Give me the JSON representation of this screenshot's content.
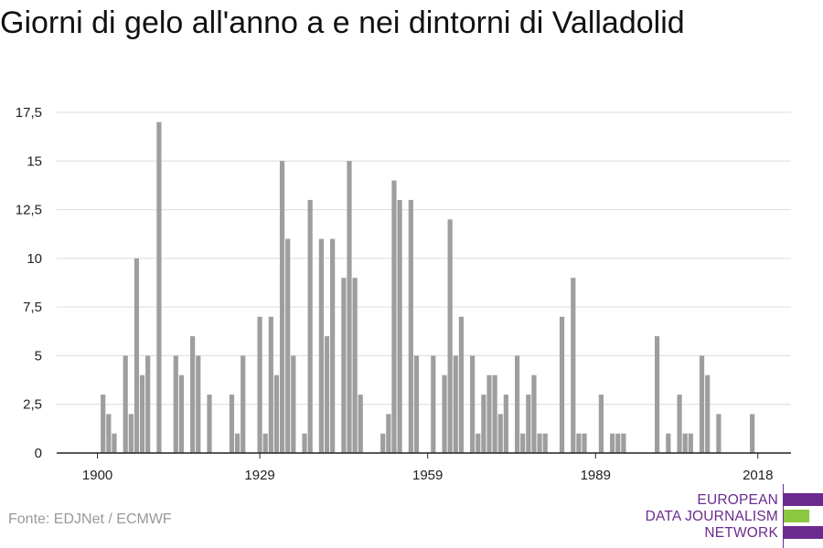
{
  "title": "Giorni di gelo all'anno a e nei dintorni di Valladolid",
  "source": "Fonte: EDJNet / ECMWF",
  "logo": {
    "lines": [
      "EUROPEAN",
      "DATA JOURNALISM",
      "NETWORK"
    ],
    "colors": {
      "purple": "#6b2a8f",
      "green": "#8dc63f"
    }
  },
  "colors": {
    "bar": "#9e9e9e",
    "grid": "#dcdcdc",
    "axis": "#222222"
  },
  "chart_data": {
    "type": "bar",
    "title": "Giorni di gelo all'anno a e nei dintorni di Valladolid",
    "xlabel": "",
    "ylabel": "",
    "x_tick_labels": [
      "1900",
      "1929",
      "1959",
      "1989",
      "2018"
    ],
    "y_tick_labels": [
      "0",
      "2,5",
      "5",
      "7,5",
      "10",
      "12,5",
      "15",
      "17,5"
    ],
    "ylim": [
      0,
      17.5
    ],
    "grid": true,
    "categories": [
      1900,
      1901,
      1902,
      1903,
      1904,
      1905,
      1906,
      1907,
      1908,
      1909,
      1910,
      1911,
      1912,
      1913,
      1914,
      1915,
      1916,
      1917,
      1918,
      1919,
      1920,
      1921,
      1922,
      1923,
      1924,
      1925,
      1926,
      1927,
      1928,
      1929,
      1930,
      1931,
      1932,
      1933,
      1934,
      1935,
      1936,
      1937,
      1938,
      1939,
      1940,
      1941,
      1942,
      1943,
      1944,
      1945,
      1946,
      1947,
      1948,
      1949,
      1950,
      1951,
      1952,
      1953,
      1954,
      1955,
      1956,
      1957,
      1958,
      1959,
      1960,
      1961,
      1962,
      1963,
      1964,
      1965,
      1966,
      1967,
      1968,
      1969,
      1970,
      1971,
      1972,
      1973,
      1974,
      1975,
      1976,
      1977,
      1978,
      1979,
      1980,
      1981,
      1982,
      1983,
      1984,
      1985,
      1986,
      1987,
      1988,
      1989,
      1990,
      1991,
      1992,
      1993,
      1994,
      1995,
      1996,
      1997,
      1998,
      1999,
      2000,
      2001,
      2002,
      2003,
      2004,
      2005,
      2006,
      2007,
      2008,
      2009,
      2010,
      2011,
      2012,
      2013,
      2014,
      2015,
      2016,
      2017,
      2018,
      2019
    ],
    "values": [
      0,
      3,
      2,
      1,
      0,
      5,
      2,
      10,
      4,
      5,
      0,
      17,
      0,
      0,
      5,
      4,
      0,
      6,
      5,
      0,
      3,
      0,
      0,
      0,
      3,
      1,
      5,
      0,
      0,
      7,
      1,
      7,
      4,
      15,
      11,
      5,
      0,
      1,
      13,
      0,
      11,
      6,
      11,
      0,
      9,
      15,
      9,
      3,
      0,
      0,
      0,
      1,
      2,
      14,
      13,
      0,
      13,
      5,
      0,
      0,
      5,
      0,
      4,
      12,
      5,
      7,
      0,
      5,
      1,
      3,
      4,
      4,
      2,
      3,
      0,
      5,
      1,
      3,
      4,
      1,
      1,
      0,
      0,
      7,
      0,
      9,
      1,
      1,
      0,
      0,
      3,
      0,
      1,
      1,
      1,
      0,
      0,
      0,
      0,
      0,
      6,
      0,
      1,
      0,
      3,
      1,
      1,
      0,
      5,
      4,
      0,
      2,
      0,
      0,
      0,
      0,
      0,
      2,
      0,
      0
    ]
  }
}
